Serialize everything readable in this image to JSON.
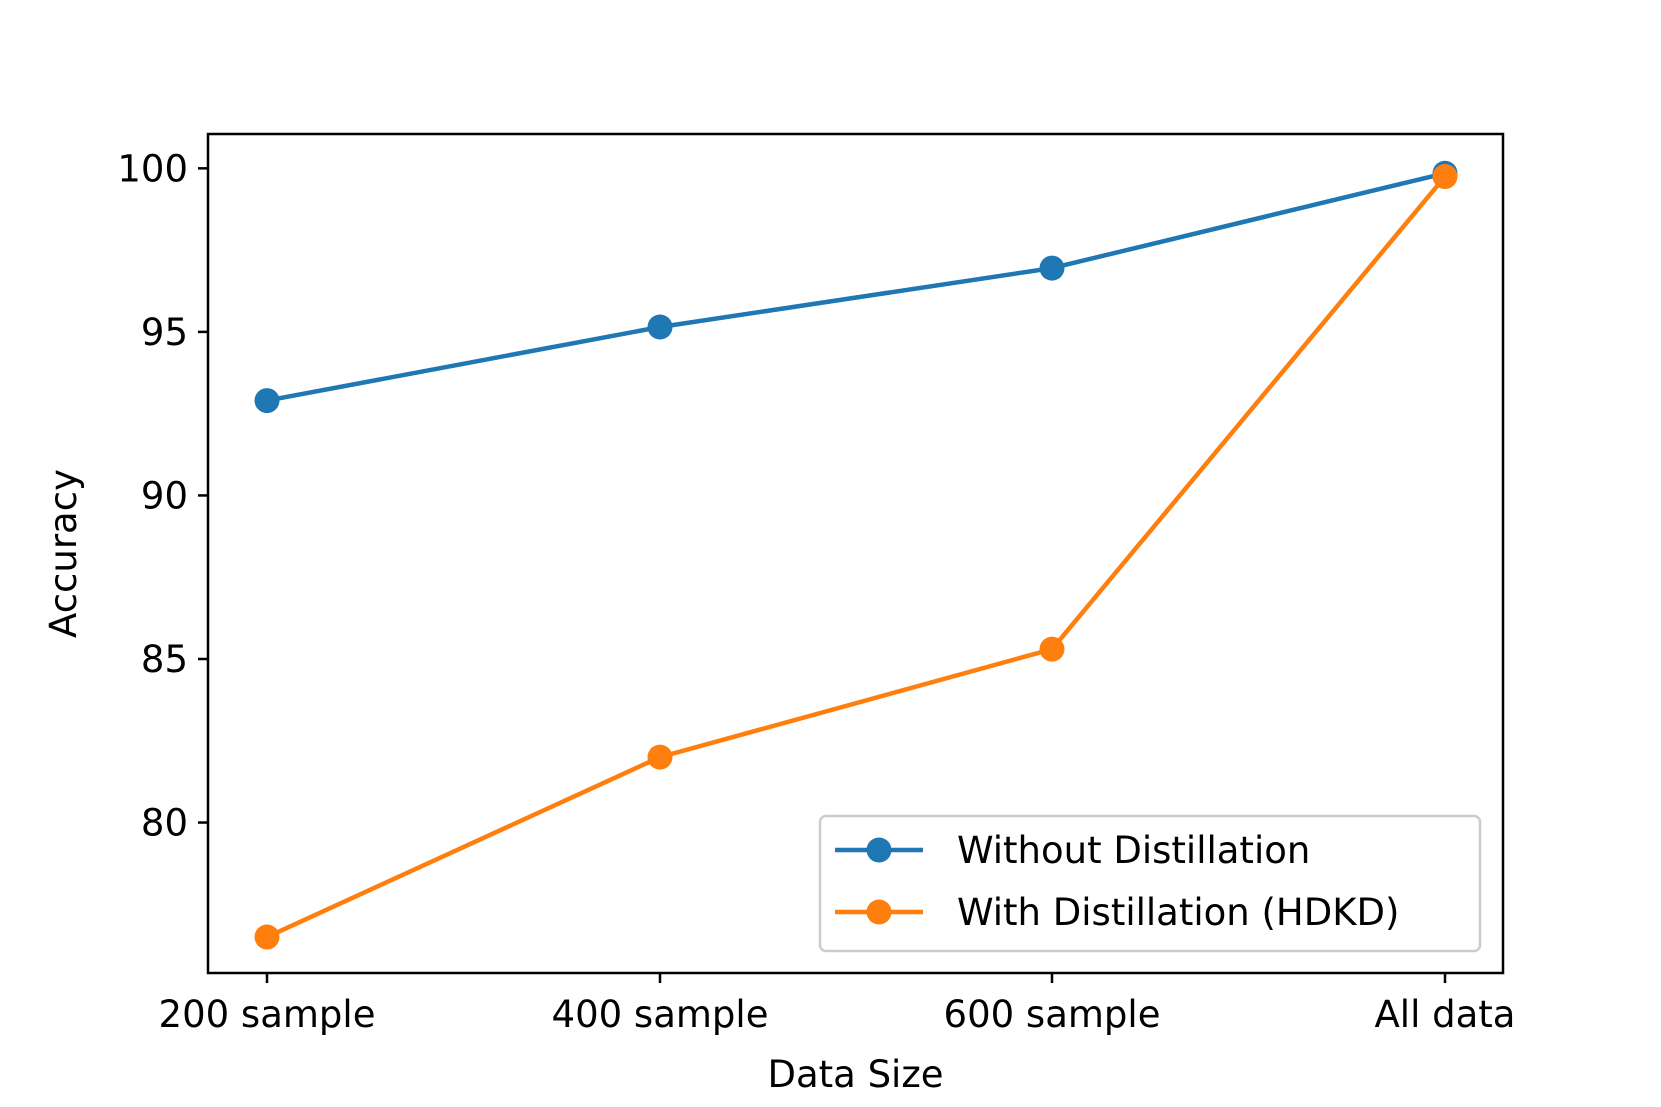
{
  "chart_data": {
    "type": "line",
    "xlabel": "Data Size",
    "ylabel": "Accuracy",
    "categories": [
      "200 sample",
      "400 sample",
      "600 sample",
      "All data"
    ],
    "ylim": [
      75.4,
      101.05
    ],
    "yticks": [
      80,
      85,
      90,
      95,
      100
    ],
    "grid": false,
    "legend_position": "lower-right",
    "series": [
      {
        "name": "Without Distillation",
        "color": "#1f77b4",
        "values": [
          92.9,
          95.15,
          96.95,
          99.85
        ]
      },
      {
        "name": "With Distillation (HDKD)",
        "color": "#ff7f0e",
        "values": [
          76.5,
          82.0,
          85.3,
          99.75
        ]
      }
    ]
  }
}
